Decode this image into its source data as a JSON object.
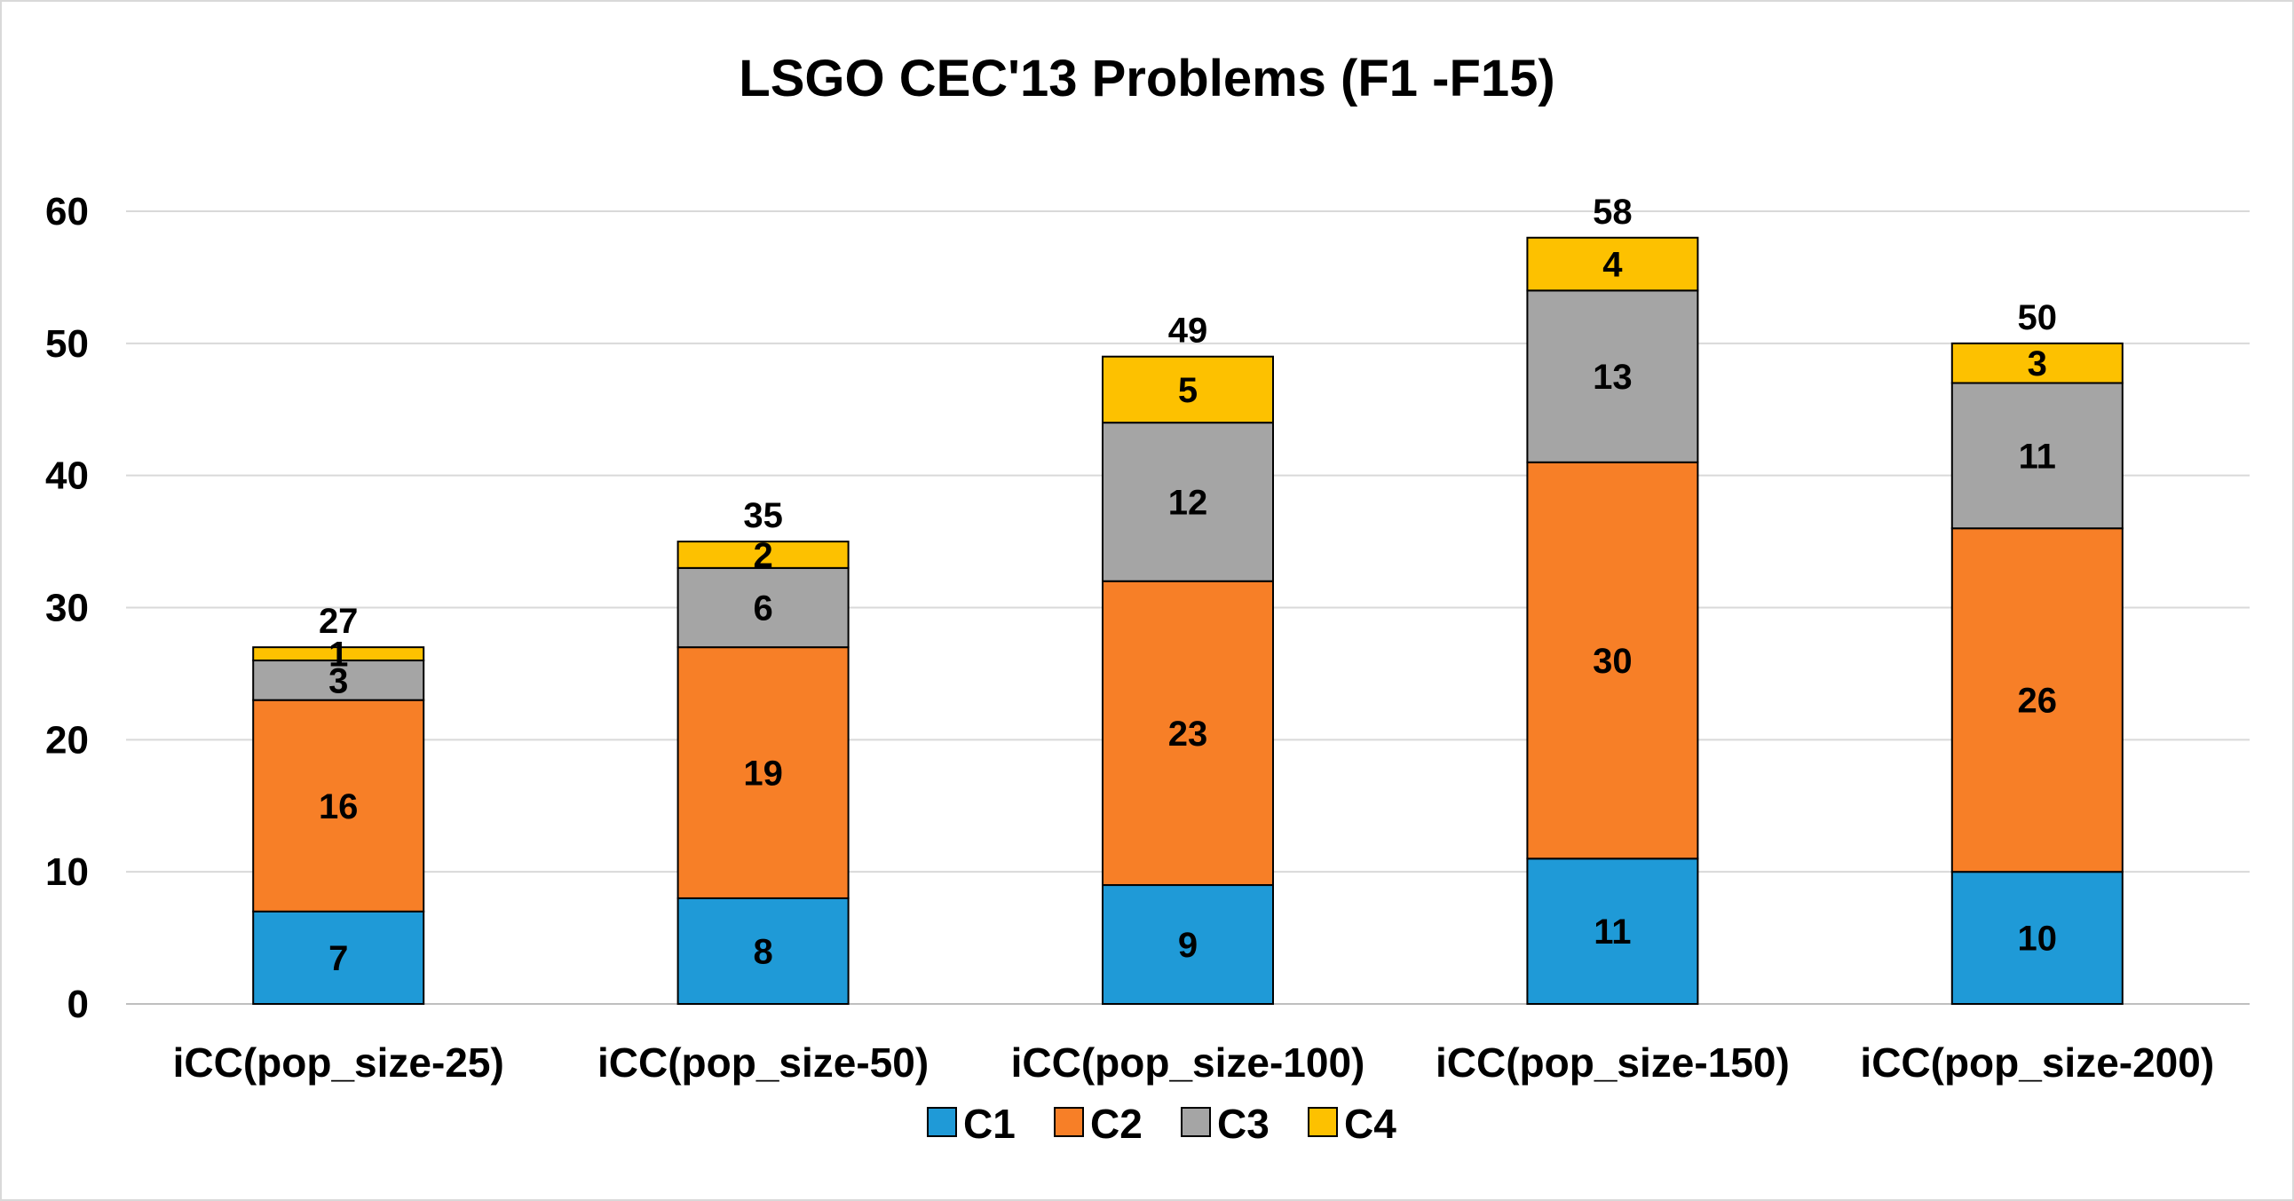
{
  "chart_data": {
    "type": "bar",
    "stacked": true,
    "title": "LSGO CEC'13 Problems (F1 -F15)",
    "xlabel": "",
    "ylabel": "",
    "ylim": [
      0,
      60
    ],
    "yticks": [
      0,
      10,
      20,
      30,
      40,
      50,
      60
    ],
    "grid": true,
    "legend_position": "bottom",
    "categories": [
      "iCC(pop_size-25)",
      "iCC(pop_size-50)",
      "iCC(pop_size-100)",
      "iCC(pop_size-150)",
      "iCC(pop_size-200)"
    ],
    "series": [
      {
        "name": "C1",
        "color": "#1f9ad7",
        "values": [
          7,
          8,
          9,
          11,
          10
        ]
      },
      {
        "name": "C2",
        "color": "#f77f27",
        "values": [
          16,
          19,
          23,
          30,
          26
        ]
      },
      {
        "name": "C3",
        "color": "#a5a5a5",
        "values": [
          3,
          6,
          12,
          13,
          11
        ]
      },
      {
        "name": "C4",
        "color": "#fdc100",
        "values": [
          1,
          2,
          5,
          4,
          3
        ]
      }
    ],
    "totals": [
      27,
      35,
      49,
      58,
      50
    ]
  }
}
